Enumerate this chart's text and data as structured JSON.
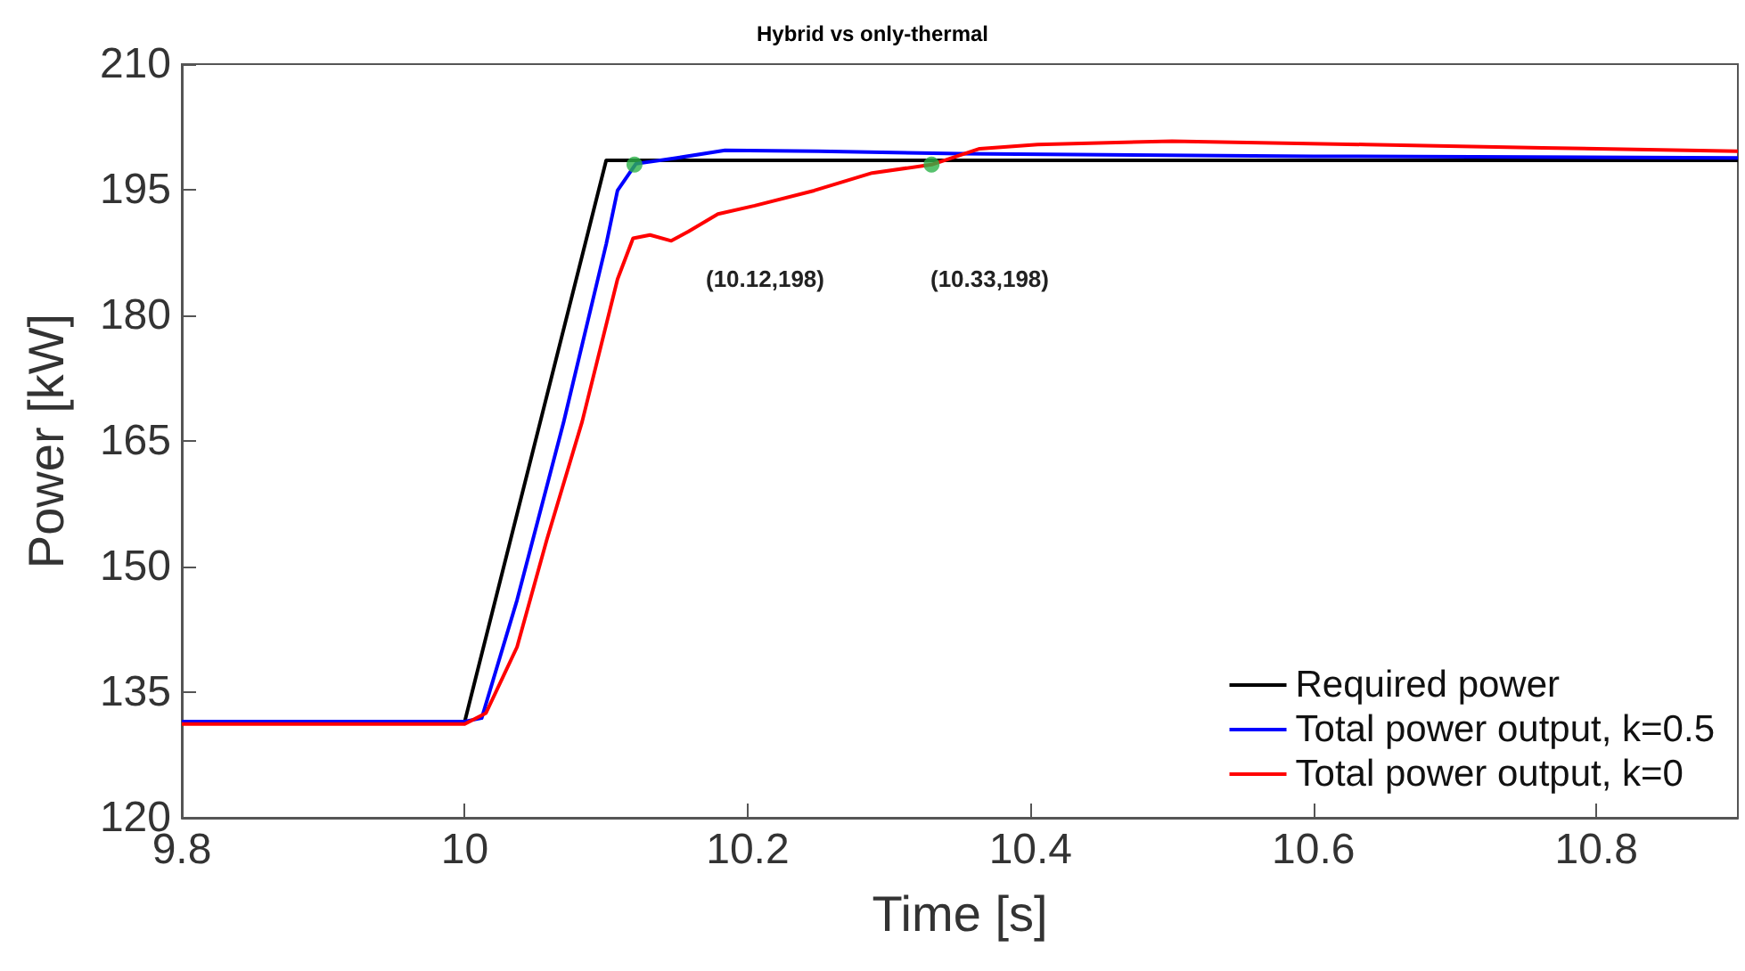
{
  "chart_data": {
    "type": "line",
    "title": "Hybrid vs only-thermal",
    "xlabel": "Time [s]",
    "ylabel": "Power [kW]",
    "xlim": [
      9.8,
      10.9
    ],
    "xticks": [
      9.8,
      10,
      10.2,
      10.4,
      10.6,
      10.8
    ],
    "ylim": [
      120,
      210
    ],
    "yticks": [
      120,
      135,
      150,
      165,
      180,
      195,
      210
    ],
    "grid": false,
    "legend": "bottom right",
    "marker": "none",
    "line_style": "solid",
    "series": [
      {
        "name": "Required power",
        "color": "#000000",
        "x": [
          9.8,
          10.0,
          10.1,
          10.9
        ],
        "values": [
          131.5,
          131.5,
          198.5,
          198.5
        ]
      },
      {
        "name": "Total power output, k=0.5",
        "color": "#0000ff",
        "x": [
          9.8,
          10.0,
          10.012,
          10.037,
          10.07,
          10.1,
          10.108,
          10.121,
          10.15,
          10.184,
          10.25,
          10.35,
          10.6,
          10.9
        ],
        "values": [
          131.5,
          131.5,
          131.9,
          146,
          167.3,
          188.5,
          194.9,
          198.1,
          198.8,
          199.7,
          199.6,
          199.3,
          199,
          198.8
        ]
      },
      {
        "name": "Total power output, k=0",
        "color": "#ff0000",
        "x": [
          9.8,
          10.0,
          10.015,
          10.037,
          10.058,
          10.083,
          10.108,
          10.119,
          10.131,
          10.146,
          10.158,
          10.179,
          10.205,
          10.247,
          10.288,
          10.33,
          10.364,
          10.405,
          10.5,
          10.637,
          10.762,
          10.9
        ],
        "values": [
          131.2,
          131.2,
          132.5,
          140.4,
          153.2,
          167.3,
          184.3,
          189.2,
          189.6,
          188.9,
          190,
          192.1,
          193.1,
          194.9,
          197,
          198,
          199.9,
          200.4,
          200.8,
          200.4,
          200,
          199.6
        ]
      },
      {
        "type": "scatter",
        "color": "#2db34a",
        "marker": "circle",
        "x": [
          10.12,
          10.33
        ],
        "values": [
          198,
          198
        ]
      }
    ],
    "annotations": [
      "(10.12,198)",
      "(10.33,198)"
    ]
  }
}
